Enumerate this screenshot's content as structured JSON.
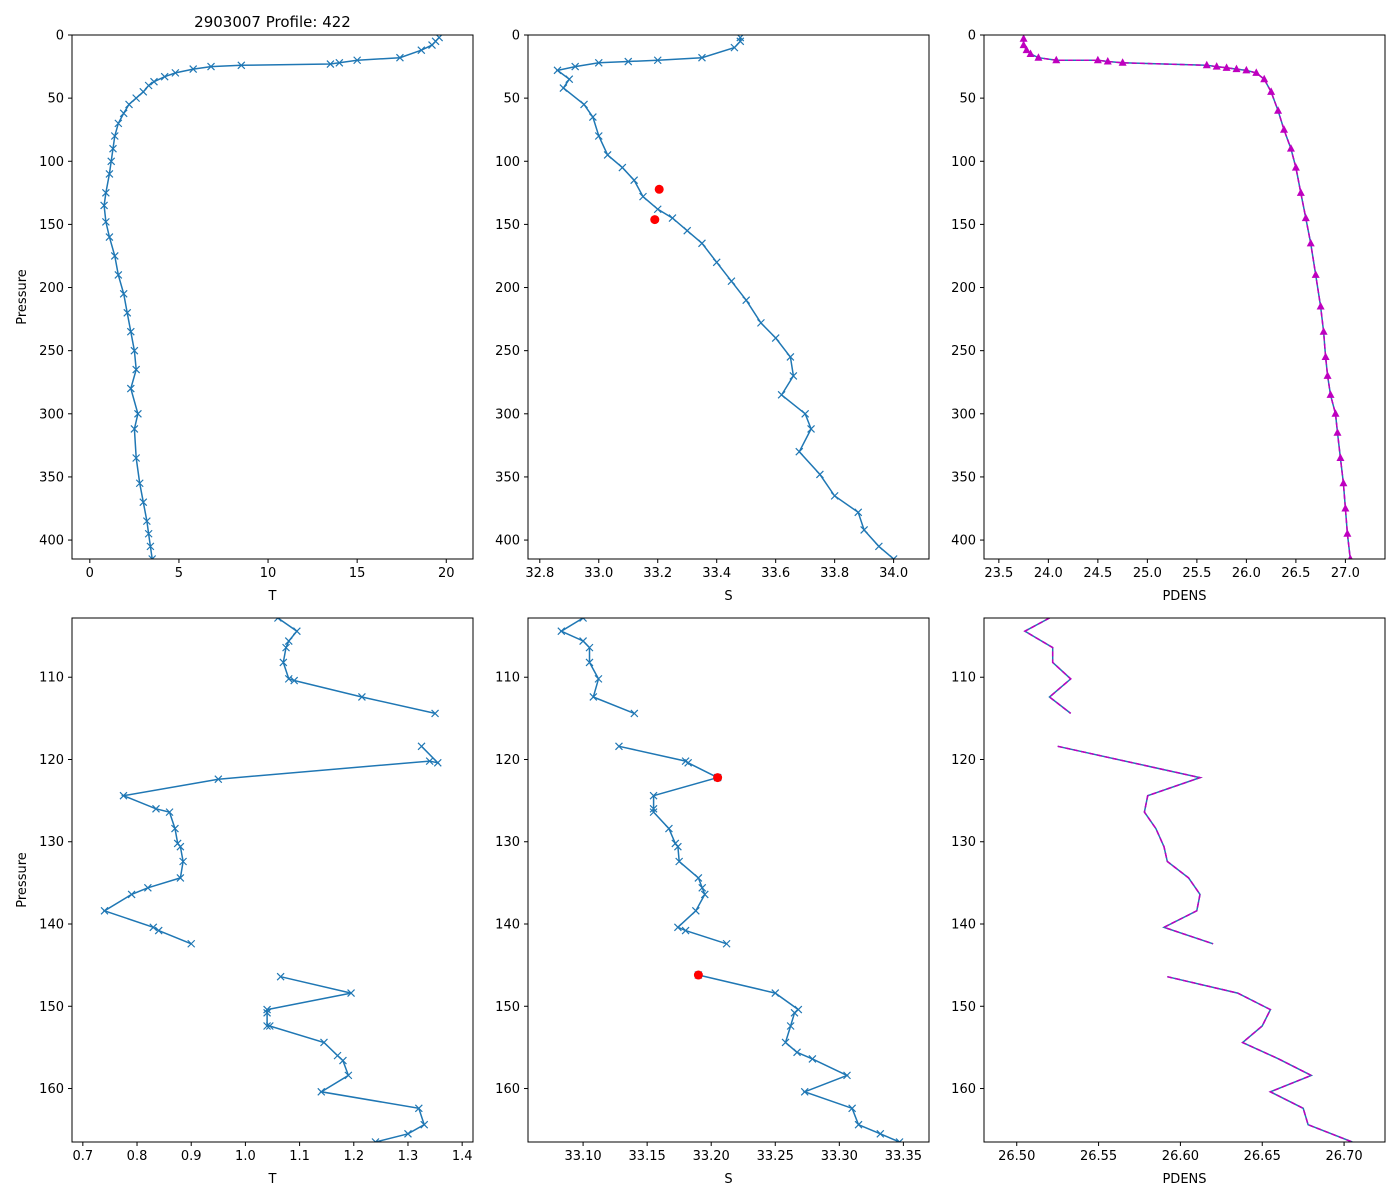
{
  "colors": {
    "series": "#1f77b4",
    "pdens": "#bf00bf",
    "flag": "#ff0000"
  },
  "chart_data": [
    {
      "panel": "top-left",
      "type": "line",
      "title": "2903007 Profile: 422",
      "xlabel": "T",
      "ylabel": "Pressure",
      "xlim": [
        -1,
        21.5
      ],
      "ylim": [
        415,
        0
      ],
      "y_inverted": true,
      "xticks": [
        0,
        5,
        10,
        15,
        20
      ],
      "yticks": [
        0,
        50,
        100,
        150,
        200,
        250,
        300,
        350,
        400
      ],
      "marker": "x",
      "series": [
        {
          "name": "T",
          "color": "#1f77b4",
          "x": [
            19.6,
            19.4,
            19.2,
            18.6,
            17.4,
            15,
            14,
            13.5,
            8.5,
            6.8,
            5.8,
            4.8,
            4.2,
            3.6,
            3.3,
            3,
            2.6,
            2.2,
            1.9,
            1.6,
            1.4,
            1.3,
            1.2,
            1.1,
            0.9,
            0.8,
            0.9,
            1.1,
            1.4,
            1.6,
            1.9,
            2.1,
            2.3,
            2.5,
            2.6,
            2.3,
            2.7,
            2.5,
            2.6,
            2.8,
            3,
            3.2,
            3.3,
            3.4,
            3.5
          ],
          "y": [
            2,
            5,
            8,
            12,
            18,
            20,
            22,
            23,
            24,
            25,
            27,
            30,
            33,
            37,
            40,
            45,
            50,
            55,
            62,
            70,
            80,
            90,
            100,
            110,
            125,
            135,
            148,
            160,
            175,
            190,
            205,
            220,
            235,
            250,
            265,
            280,
            300,
            312,
            335,
            355,
            370,
            385,
            395,
            405,
            415
          ]
        }
      ]
    },
    {
      "panel": "top-middle",
      "type": "line",
      "xlabel": "S",
      "xlim": [
        32.76,
        34.12
      ],
      "ylim": [
        415,
        0
      ],
      "y_inverted": true,
      "xticks": [
        32.8,
        33.0,
        33.2,
        33.4,
        33.6,
        33.8,
        34.0
      ],
      "yticks": [
        0,
        50,
        100,
        150,
        200,
        250,
        300,
        350,
        400
      ],
      "marker": "x",
      "series": [
        {
          "name": "S",
          "color": "#1f77b4",
          "x": [
            33.48,
            33.48,
            33.46,
            33.35,
            33.2,
            33.1,
            33.0,
            32.92,
            32.86,
            32.9,
            32.88,
            32.95,
            32.98,
            33.0,
            33.03,
            33.08,
            33.12,
            33.15,
            33.2,
            33.25,
            33.3,
            33.35,
            33.4,
            33.45,
            33.5,
            33.55,
            33.6,
            33.65,
            33.66,
            33.62,
            33.7,
            33.72,
            33.68,
            33.75,
            33.8,
            33.88,
            33.9,
            33.95,
            34.0
          ],
          "y": [
            2,
            5,
            10,
            18,
            20,
            21,
            22,
            25,
            28,
            35,
            42,
            55,
            65,
            80,
            95,
            105,
            115,
            128,
            138,
            145,
            155,
            165,
            180,
            195,
            210,
            228,
            240,
            255,
            270,
            285,
            300,
            312,
            330,
            348,
            365,
            378,
            392,
            405,
            415
          ]
        }
      ],
      "flagged_points": {
        "color": "#ff0000",
        "x": [
          33.205,
          33.19
        ],
        "y": [
          122.2,
          146.2
        ]
      }
    },
    {
      "panel": "top-right",
      "type": "line",
      "xlabel": "PDENS",
      "xlim": [
        23.35,
        27.4
      ],
      "ylim": [
        415,
        0
      ],
      "y_inverted": true,
      "xticks": [
        23.5,
        24.0,
        24.5,
        25.0,
        25.5,
        26.0,
        26.5,
        27.0
      ],
      "yticks": [
        0,
        50,
        100,
        150,
        200,
        250,
        300,
        350,
        400
      ],
      "marker": "triangle",
      "series": [
        {
          "name": "PDENS",
          "color": "#bf00bf",
          "x": [
            23.75,
            23.75,
            23.78,
            23.82,
            23.9,
            24.08,
            24.5,
            24.6,
            24.75,
            25.6,
            25.7,
            25.8,
            25.9,
            26.0,
            26.1,
            26.18,
            26.25,
            26.32,
            26.38,
            26.45,
            26.5,
            26.55,
            26.6,
            26.65,
            26.7,
            26.75,
            26.78,
            26.8,
            26.82,
            26.85,
            26.9,
            26.92,
            26.95,
            26.98,
            27.0,
            27.02,
            27.05
          ],
          "y": [
            3,
            8,
            12,
            15,
            18,
            20,
            20,
            21,
            22,
            24,
            25,
            26,
            27,
            28,
            30,
            35,
            45,
            60,
            75,
            90,
            105,
            125,
            145,
            165,
            190,
            215,
            235,
            255,
            270,
            285,
            300,
            315,
            335,
            355,
            375,
            395,
            415
          ]
        }
      ]
    },
    {
      "panel": "bottom-left",
      "type": "line",
      "xlabel": "T",
      "ylabel": "Pressure",
      "xlim": [
        0.68,
        1.42
      ],
      "ylim": [
        166.5,
        102.8
      ],
      "y_inverted": true,
      "xticks": [
        0.7,
        0.8,
        0.9,
        1.0,
        1.1,
        1.2,
        1.3,
        1.4
      ],
      "yticks": [
        110,
        120,
        130,
        140,
        150,
        160
      ],
      "marker": "x",
      "series": [
        {
          "name": "T seg 1",
          "color": "#1f77b4",
          "x": [
            1.06,
            1.095,
            1.08,
            1.075,
            1.07,
            1.08,
            1.09,
            1.215,
            1.35
          ],
          "y": [
            102.8,
            104.4,
            105.6,
            106.4,
            108.2,
            110.2,
            110.4,
            112.4,
            114.4
          ]
        },
        {
          "name": "T seg 2",
          "color": "#1f77b4",
          "x": [
            1.325,
            1.355,
            1.34,
            0.95,
            0.775,
            0.835,
            0.86,
            0.87,
            0.875,
            0.88,
            0.885,
            0.88,
            0.82,
            0.79,
            0.74,
            0.83,
            0.84,
            0.9
          ],
          "y": [
            118.4,
            120.4,
            120.2,
            122.4,
            124.4,
            126.0,
            126.4,
            128.4,
            130.2,
            130.6,
            132.4,
            134.4,
            135.6,
            136.4,
            138.4,
            140.4,
            140.8,
            142.4
          ]
        },
        {
          "name": "T seg 3",
          "color": "#1f77b4",
          "x": [
            1.065,
            1.195,
            1.04,
            1.04,
            1.04,
            1.045,
            1.145,
            1.17,
            1.18,
            1.19,
            1.14,
            1.32,
            1.33,
            1.3,
            1.24
          ],
          "y": [
            146.4,
            148.4,
            150.4,
            150.8,
            152.4,
            152.4,
            154.4,
            156.0,
            156.6,
            158.4,
            160.4,
            162.4,
            164.4,
            165.5,
            166.5
          ]
        }
      ]
    },
    {
      "panel": "bottom-middle",
      "type": "line",
      "xlabel": "S",
      "xlim": [
        33.057,
        33.37
      ],
      "ylim": [
        166.5,
        102.8
      ],
      "y_inverted": true,
      "xticks": [
        33.1,
        33.15,
        33.2,
        33.25,
        33.3,
        33.35
      ],
      "yticks": [
        110,
        120,
        130,
        140,
        150,
        160
      ],
      "marker": "x",
      "series": [
        {
          "name": "S seg 1",
          "color": "#1f77b4",
          "x": [
            33.1,
            33.083,
            33.1,
            33.105,
            33.105,
            33.112,
            33.108,
            33.14
          ],
          "y": [
            102.8,
            104.4,
            105.6,
            106.4,
            108.2,
            110.2,
            112.4,
            114.4
          ]
        },
        {
          "name": "S seg 2",
          "color": "#1f77b4",
          "x": [
            33.128,
            33.18,
            33.182,
            33.205,
            33.155,
            33.155,
            33.155,
            33.167,
            33.172,
            33.174,
            33.175,
            33.19,
            33.193,
            33.195,
            33.188,
            33.174,
            33.18,
            33.212
          ],
          "y": [
            118.4,
            120.2,
            120.4,
            122.2,
            124.4,
            126.0,
            126.4,
            128.4,
            130.2,
            130.6,
            132.4,
            134.4,
            135.6,
            136.4,
            138.4,
            140.4,
            140.8,
            142.4
          ]
        },
        {
          "name": "S seg 3",
          "color": "#1f77b4",
          "x": [
            33.19,
            33.25,
            33.268,
            33.265,
            33.262,
            33.258,
            33.267,
            33.279,
            33.306,
            33.273,
            33.31,
            33.315,
            33.332,
            33.347
          ],
          "y": [
            146.2,
            148.4,
            150.4,
            150.8,
            152.4,
            154.4,
            155.6,
            156.4,
            158.4,
            160.4,
            162.4,
            164.4,
            165.5,
            166.5
          ]
        }
      ],
      "flagged_points": {
        "color": "#ff0000",
        "x": [
          33.205,
          33.19
        ],
        "y": [
          122.2,
          146.2
        ]
      }
    },
    {
      "panel": "bottom-right",
      "type": "line",
      "xlabel": "PDENS",
      "xlim": [
        26.48,
        26.725
      ],
      "ylim": [
        166.5,
        102.8
      ],
      "y_inverted": true,
      "xticks": [
        26.5,
        26.55,
        26.6,
        26.65,
        26.7
      ],
      "yticks": [
        110,
        120,
        130,
        140,
        150,
        160
      ],
      "marker": "none",
      "series": [
        {
          "name": "PDENS seg 1",
          "color": "#bf00bf",
          "x": [
            26.52,
            26.505,
            26.522,
            26.522,
            26.533,
            26.52,
            26.533
          ],
          "y": [
            102.8,
            104.4,
            106.4,
            108.2,
            110.2,
            112.4,
            114.4
          ]
        },
        {
          "name": "PDENS seg 2",
          "color": "#bf00bf",
          "x": [
            26.525,
            26.612,
            26.58,
            26.578,
            26.585,
            26.59,
            26.592,
            26.605,
            26.612,
            26.61,
            26.59,
            26.62
          ],
          "y": [
            118.4,
            122.2,
            124.4,
            126.4,
            128.4,
            130.6,
            132.4,
            134.4,
            136.4,
            138.4,
            140.4,
            142.4
          ]
        },
        {
          "name": "PDENS seg 3",
          "color": "#bf00bf",
          "x": [
            26.592,
            26.635,
            26.655,
            26.65,
            26.638,
            26.66,
            26.68,
            26.655,
            26.675,
            26.678,
            26.705
          ],
          "y": [
            146.4,
            148.4,
            150.4,
            152.4,
            154.4,
            156.4,
            158.4,
            160.4,
            162.4,
            164.4,
            166.5
          ]
        }
      ]
    }
  ]
}
